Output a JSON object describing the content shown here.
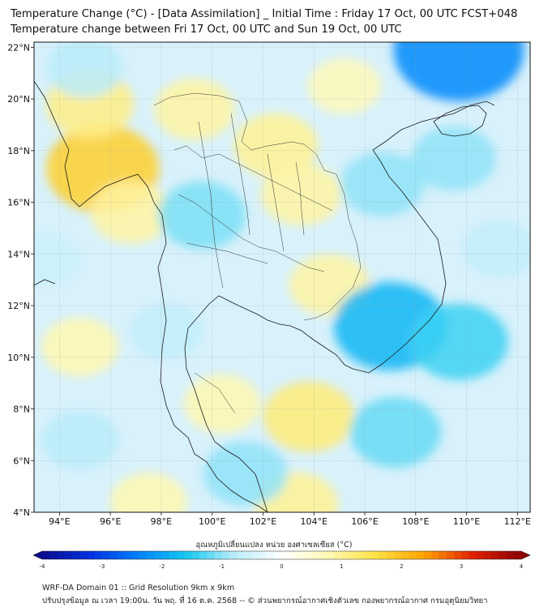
{
  "title_line1": "Temperature Change (°C) - [Data Assimilation] _ Initial Time : Friday 17 Oct, 00 UTC FCST+048",
  "title_line2": "Temperature change between Fri 17 Oct, 00 UTC and Sun 19 Oct, 00 UTC",
  "map": {
    "lon_ticks": [
      "94°E",
      "96°E",
      "98°E",
      "100°E",
      "102°E",
      "104°E",
      "106°E",
      "108°E",
      "110°E",
      "112°E"
    ],
    "lat_ticks": [
      "22°N",
      "20°N",
      "18°N",
      "16°N",
      "14°N",
      "12°N",
      "10°N",
      "8°N",
      "6°N",
      "4°N"
    ],
    "lon_values": [
      94,
      96,
      98,
      100,
      102,
      104,
      106,
      108,
      110,
      112
    ],
    "lat_values": [
      22,
      20,
      18,
      16,
      14,
      12,
      10,
      8,
      6,
      4
    ],
    "lon_range": [
      93,
      112.5
    ],
    "lat_range": [
      4,
      22.2
    ],
    "gridlines": true,
    "anomalies": [
      {
        "lon": 95.7,
        "lat": 17.3,
        "value": 1.8
      },
      {
        "lon": 95.2,
        "lat": 19.8,
        "value": 1.1
      },
      {
        "lon": 96.8,
        "lat": 15.6,
        "value": 0.9
      },
      {
        "lon": 99.3,
        "lat": 19.6,
        "value": 0.9
      },
      {
        "lon": 102.5,
        "lat": 18.2,
        "value": 1.0
      },
      {
        "lon": 103.5,
        "lat": 16.3,
        "value": 0.9
      },
      {
        "lon": 104.6,
        "lat": 12.8,
        "value": 0.9
      },
      {
        "lon": 100.4,
        "lat": 8.2,
        "value": 0.8
      },
      {
        "lon": 103.8,
        "lat": 7.7,
        "value": 1.2
      },
      {
        "lon": 103.3,
        "lat": 4.3,
        "value": 1.0
      },
      {
        "lon": 97.5,
        "lat": 4.4,
        "value": 0.8
      },
      {
        "lon": 94.8,
        "lat": 10.4,
        "value": 0.8
      },
      {
        "lon": 105.2,
        "lat": 20.5,
        "value": 0.7
      },
      {
        "lon": 95.0,
        "lat": 21.2,
        "value": -0.8
      },
      {
        "lon": 107.0,
        "lat": 11.2,
        "value": -1.8
      },
      {
        "lon": 99.6,
        "lat": 15.5,
        "value": -1.1
      },
      {
        "lon": 109.7,
        "lat": 10.6,
        "value": -1.4
      },
      {
        "lon": 109.5,
        "lat": 17.7,
        "value": -1.0
      },
      {
        "lon": 106.7,
        "lat": 16.7,
        "value": -1.0
      },
      {
        "lon": 107.2,
        "lat": 7.1,
        "value": -1.2
      },
      {
        "lon": 101.3,
        "lat": 5.5,
        "value": -1.0
      },
      {
        "lon": 98.2,
        "lat": 11.0,
        "value": -0.7
      },
      {
        "lon": 94.8,
        "lat": 6.8,
        "value": -0.8
      },
      {
        "lon": 109.7,
        "lat": 21.9,
        "value": -2.3
      },
      {
        "lon": 111.3,
        "lat": 14.2,
        "value": -0.7
      },
      {
        "lon": 93.5,
        "lat": 13.8,
        "value": -0.6
      }
    ]
  },
  "colorbar": {
    "label": "อุณหภูมิเปลี่ยนแปลง หน่วย องศาเซลเซียส (°C)",
    "ticks": [
      "-4",
      "-3",
      "-2",
      "-1",
      "0",
      "1",
      "2",
      "3",
      "4"
    ],
    "tick_values": [
      -4,
      -3,
      -2,
      -1,
      0,
      1,
      2,
      3,
      4
    ],
    "range": [
      -4,
      4
    ],
    "colors": [
      "#0a0a8c",
      "#0030e0",
      "#0080ff",
      "#14c8f0",
      "#b8ecfa",
      "#ffffff",
      "#fff8b0",
      "#ffe040",
      "#ffa000",
      "#e02000",
      "#8b0000"
    ]
  },
  "footer_line1": "WRF-DA Domain 01 :: Grid Resolution 9km x 9km",
  "footer_line2": "ปรับปรุงข้อมูล ณ เวลา 19:00น. วัน พฤ. ที่ 16 ต.ค. 2568 -- © ส่วนพยากรณ์อากาศเชิงตัวเลข กองพยากรณ์อากาศ กรมอุตุนิยมวิทยา"
}
